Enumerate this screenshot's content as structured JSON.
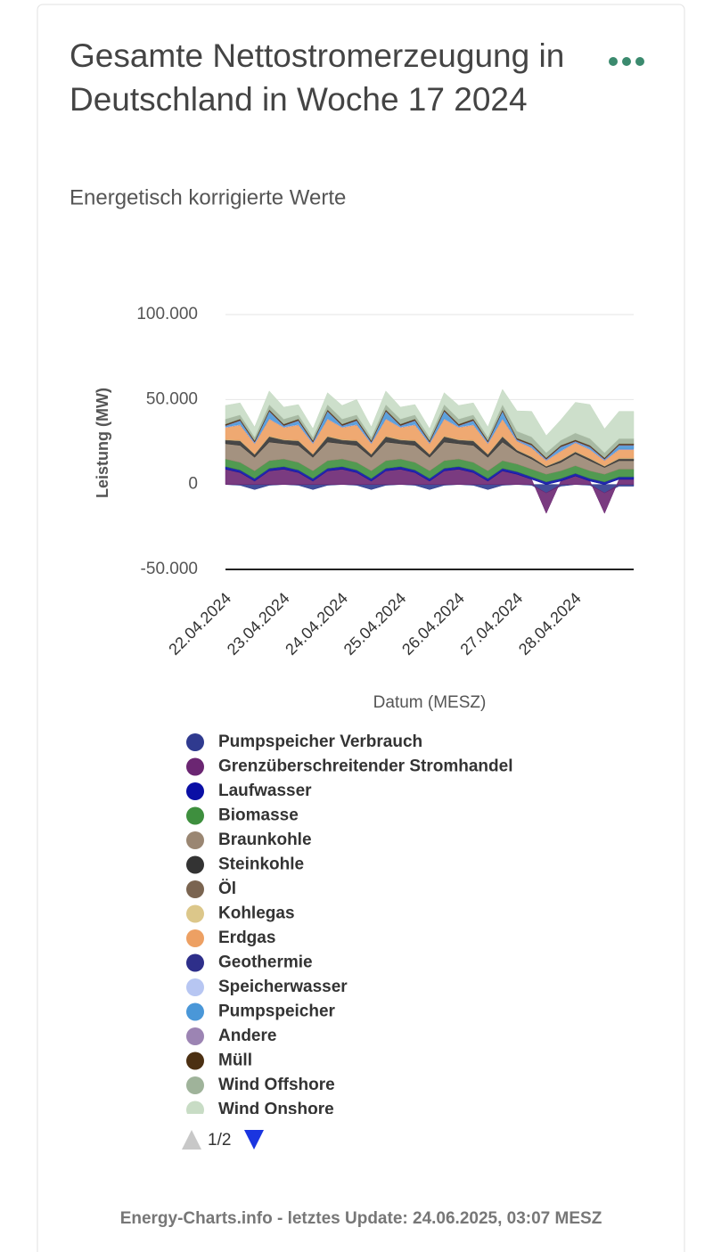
{
  "chart_data": {
    "type": "stacked-area",
    "title": "Gesamte Nettostromerzeugung in Deutschland in Woche 17 2024",
    "subtitle": "Energetisch korrigierte Werte",
    "y_label": "Leistung (MW)",
    "x_label": "Datum (MESZ)",
    "categories": [
      "22.04.2024",
      null,
      null,
      null,
      "23.04.2024",
      null,
      null,
      null,
      "24.04.2024",
      null,
      null,
      null,
      "25.04.2024",
      null,
      null,
      null,
      "26.04.2024",
      null,
      null,
      null,
      "27.04.2024",
      null,
      null,
      null,
      "28.04.2024",
      null,
      null,
      null
    ],
    "ylim": [
      -50000,
      100000
    ],
    "yticks": [
      {
        "value": -50000,
        "label": "-50.000"
      },
      0,
      {
        "value": 50000,
        "label": "50.000"
      },
      {
        "value": 100000,
        "label": "100.000"
      }
    ],
    "grid": true,
    "pagination": "1/2",
    "footer": "Energy-Charts.info - letztes Update: 24.06.2025, 03:07 MESZ",
    "series": [
      {
        "name": "Pumpspeicher Verbrauch",
        "color": "#2f3a8f",
        "values": [
          0,
          -500,
          -3000,
          -500,
          0,
          -500,
          -3000,
          -500,
          0,
          -500,
          -3000,
          -500,
          0,
          -500,
          -3000,
          -500,
          0,
          -500,
          -3000,
          -500,
          0,
          -500,
          -5000,
          -1000,
          0,
          -500,
          -5000,
          -1000
        ]
      },
      {
        "name": "Grenzüberschreitender Stromhandel",
        "color": "#6b2672",
        "values": [
          9000,
          7000,
          2000,
          8000,
          9000,
          7000,
          2000,
          8000,
          9000,
          7000,
          2000,
          8000,
          9000,
          7000,
          2000,
          8000,
          9000,
          7000,
          2000,
          8000,
          6000,
          3000,
          -12000,
          2000,
          5000,
          2000,
          -12000,
          3000
        ]
      },
      {
        "name": "Laufwasser",
        "color": "#0a0fa5",
        "values": [
          1500,
          1500,
          1500,
          1500,
          1500,
          1500,
          1500,
          1500,
          1500,
          1500,
          1500,
          1500,
          1500,
          1500,
          1500,
          1500,
          1500,
          1500,
          1500,
          1500,
          1500,
          1500,
          1500,
          1500,
          1500,
          1500,
          1500,
          1500
        ]
      },
      {
        "name": "Biomasse",
        "color": "#3e8f3e",
        "values": [
          4500,
          4500,
          4500,
          4500,
          4500,
          4500,
          4500,
          4500,
          4500,
          4500,
          4500,
          4500,
          4500,
          4500,
          4500,
          4500,
          4500,
          4500,
          4500,
          4500,
          4500,
          4500,
          4500,
          4500,
          4500,
          4500,
          4500,
          4500
        ]
      },
      {
        "name": "Braunkohle",
        "color": "#9a8672",
        "values": [
          9000,
          10000,
          8000,
          11000,
          9000,
          10000,
          8000,
          11000,
          9000,
          10000,
          8000,
          11000,
          9000,
          10000,
          8000,
          11000,
          9000,
          10000,
          8000,
          11000,
          7000,
          6000,
          4000,
          5000,
          7000,
          6000,
          4000,
          5000
        ]
      },
      {
        "name": "Steinkohle",
        "color": "#333333",
        "values": [
          2000,
          2500,
          1500,
          3000,
          2000,
          2500,
          1500,
          3000,
          2000,
          2500,
          1500,
          3000,
          2000,
          2500,
          1500,
          3000,
          2000,
          2500,
          1500,
          3000,
          1000,
          1000,
          500,
          1000,
          1000,
          1000,
          500,
          1000
        ]
      },
      {
        "name": "Öl",
        "color": "#7a6450",
        "values": [
          300,
          300,
          300,
          300,
          300,
          300,
          300,
          300,
          300,
          300,
          300,
          300,
          300,
          300,
          300,
          300,
          300,
          300,
          300,
          300,
          300,
          300,
          300,
          300,
          300,
          300,
          300,
          300
        ]
      },
      {
        "name": "Kohlegas",
        "color": "#dcc78a",
        "values": [
          300,
          300,
          300,
          300,
          300,
          300,
          300,
          300,
          300,
          300,
          300,
          300,
          300,
          300,
          300,
          300,
          300,
          300,
          300,
          300,
          300,
          300,
          300,
          300,
          300,
          300,
          300,
          300
        ]
      },
      {
        "name": "Erdgas",
        "color": "#eda063",
        "values": [
          7000,
          9000,
          6000,
          10000,
          7000,
          9000,
          6000,
          10000,
          7000,
          9000,
          6000,
          10000,
          7000,
          9000,
          6000,
          10000,
          7000,
          9000,
          6000,
          10000,
          5000,
          5000,
          3000,
          5000,
          5000,
          5000,
          3000,
          5000
        ]
      },
      {
        "name": "Geothermie",
        "color": "#2e2f8a",
        "values": [
          20,
          20,
          20,
          20,
          20,
          20,
          20,
          20,
          20,
          20,
          20,
          20,
          20,
          20,
          20,
          20,
          20,
          20,
          20,
          20,
          20,
          20,
          20,
          20,
          20,
          20,
          20,
          20
        ]
      },
      {
        "name": "Speicherwasser",
        "color": "#b7c6f2",
        "values": [
          300,
          300,
          300,
          300,
          300,
          300,
          300,
          300,
          300,
          300,
          300,
          300,
          300,
          300,
          300,
          300,
          300,
          300,
          300,
          300,
          300,
          300,
          300,
          300,
          300,
          300,
          300,
          300
        ]
      },
      {
        "name": "Pumpspeicher",
        "color": "#4a97d8",
        "values": [
          500,
          2000,
          300,
          4000,
          500,
          2000,
          300,
          4000,
          500,
          2000,
          300,
          4000,
          500,
          2000,
          300,
          4000,
          500,
          2000,
          300,
          4000,
          300,
          1000,
          200,
          2000,
          300,
          1000,
          200,
          2000
        ]
      },
      {
        "name": "Andere",
        "color": "#9c84b3",
        "values": [
          300,
          300,
          300,
          300,
          300,
          300,
          300,
          300,
          300,
          300,
          300,
          300,
          300,
          300,
          300,
          300,
          300,
          300,
          300,
          300,
          300,
          300,
          300,
          300,
          300,
          300,
          300,
          300
        ]
      },
      {
        "name": "Müll",
        "color": "#4c3012",
        "values": [
          800,
          800,
          800,
          800,
          800,
          800,
          800,
          800,
          800,
          800,
          800,
          800,
          800,
          800,
          800,
          800,
          800,
          800,
          800,
          800,
          800,
          800,
          800,
          800,
          800,
          800,
          800,
          800
        ]
      },
      {
        "name": "Wind Offshore",
        "color": "#9fb39a",
        "values": [
          3000,
          2500,
          2000,
          3000,
          3000,
          2500,
          2000,
          3000,
          3000,
          2500,
          2000,
          3000,
          3000,
          2500,
          2000,
          3000,
          3000,
          2500,
          2000,
          3000,
          4000,
          4000,
          3000,
          3000,
          4000,
          4000,
          3000,
          3000
        ]
      },
      {
        "name": "Wind Onshore",
        "color": "#c8dcc5",
        "values": [
          8000,
          7000,
          6000,
          8000,
          7000,
          6000,
          5000,
          7000,
          8000,
          9000,
          6000,
          8000,
          7000,
          6000,
          5000,
          7000,
          8000,
          7000,
          6000,
          9000,
          12000,
          15000,
          10000,
          12000,
          18000,
          20000,
          14000,
          16000
        ]
      }
    ]
  }
}
